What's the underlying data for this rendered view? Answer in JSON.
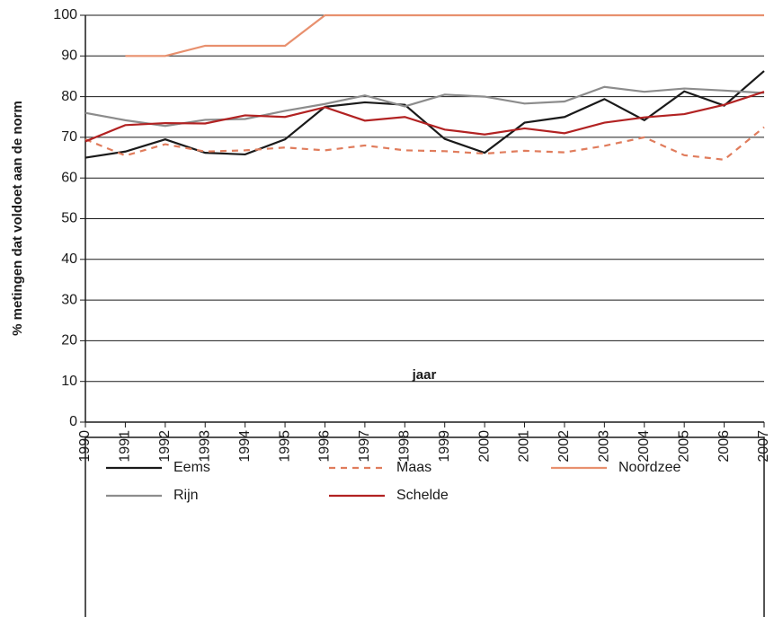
{
  "chart_data": {
    "type": "line",
    "x_label": "jaar",
    "y_label": "% metingen dat voldoet aan de norm",
    "x": [
      1990,
      1991,
      1992,
      1993,
      1994,
      1995,
      1996,
      1997,
      1998,
      1999,
      2000,
      2001,
      2002,
      2003,
      2004,
      2005,
      2006,
      2007
    ],
    "xlim": [
      1990,
      2007
    ],
    "xticks": [
      1990,
      1991,
      1992,
      1993,
      1994,
      1995,
      1996,
      1997,
      1998,
      1999,
      2000,
      2001,
      2002,
      2003,
      2004,
      2005,
      2006,
      2007
    ],
    "ylim": [
      0,
      100
    ],
    "yticks": [
      0,
      10,
      20,
      30,
      40,
      50,
      60,
      70,
      80,
      90,
      100
    ],
    "grid": true,
    "series": [
      {
        "name": "Eems",
        "color": "#1a1a1a",
        "dashed": false,
        "values": [
          65,
          66.5,
          69.5,
          66.2,
          65.8,
          69.5,
          77.5,
          78.6,
          78,
          69.6,
          66.2,
          73.6,
          75,
          79.4,
          74.2,
          81.3,
          77.8,
          86.3
        ]
      },
      {
        "name": "Maas",
        "color": "#e07c5c",
        "dashed": true,
        "values": [
          69.5,
          65.5,
          68.3,
          66.5,
          66.8,
          67.5,
          66.8,
          68,
          66.8,
          66.6,
          66,
          66.7,
          66.3,
          67.9,
          70,
          65.6,
          64.5,
          72.5
        ]
      },
      {
        "name": "Noordzee",
        "color": "#e8906e",
        "dashed": false,
        "values": [
          null,
          90,
          90,
          92.5,
          92.5,
          92.5,
          100,
          100,
          100,
          100,
          100,
          100,
          100,
          100,
          100,
          100,
          100,
          100
        ]
      },
      {
        "name": "Rijn",
        "color": "#8c8c8c",
        "dashed": false,
        "values": [
          76,
          74.2,
          72.8,
          74.3,
          74.5,
          76.5,
          78.2,
          80.3,
          77.6,
          80.5,
          80,
          78.3,
          78.8,
          82.4,
          81.2,
          82,
          81.5,
          80.9
        ]
      },
      {
        "name": "Schelde",
        "color": "#b22222",
        "dashed": false,
        "values": [
          69,
          73,
          73.5,
          73.4,
          75.4,
          75,
          77.4,
          74.1,
          75,
          71.9,
          70.7,
          72.2,
          71,
          73.6,
          74.9,
          75.7,
          78,
          81.2
        ]
      }
    ]
  }
}
